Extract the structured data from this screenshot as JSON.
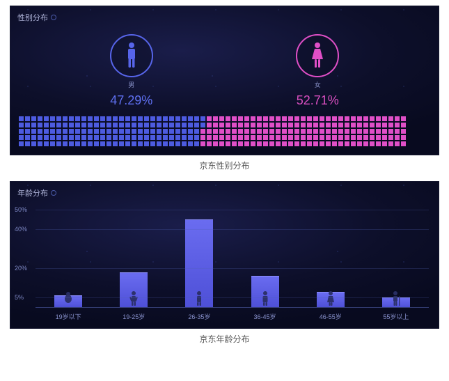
{
  "gender_panel": {
    "title": "性别分布",
    "caption": "京东性别分布",
    "male": {
      "label": "男",
      "pct_text": "47.29%",
      "value": 47.29,
      "color": "#5765ea",
      "pct_color": "#5f70f1"
    },
    "female": {
      "label": "女",
      "pct_text": "52.71%",
      "value": 52.71,
      "color": "#e04fc7",
      "pct_color": "#d94fc0"
    },
    "waffle": {
      "rows": 5,
      "cols": 62,
      "male_color": "#4d5be0",
      "female_color": "#e04fc7"
    }
  },
  "age_panel": {
    "title": "年龄分布",
    "caption": "京东年龄分布",
    "type": "bar",
    "y_ticks": [
      {
        "label": "50%",
        "value": 50
      },
      {
        "label": "40%",
        "value": 40
      },
      {
        "label": "20%",
        "value": 20
      },
      {
        "label": "5%",
        "value": 5
      }
    ],
    "y_max": 55,
    "bar_color_top": "#6a6cf0",
    "bar_color_bottom": "#4e50d7",
    "grid_color": "rgba(80,95,180,.25)",
    "icon_color": "#2a2f66",
    "categories": [
      {
        "label": "19岁以下",
        "value": 6,
        "icon": "baby"
      },
      {
        "label": "19-25岁",
        "value": 18,
        "icon": "youth"
      },
      {
        "label": "26-35岁",
        "value": 45,
        "icon": "adult"
      },
      {
        "label": "36-45岁",
        "value": 16,
        "icon": "midage"
      },
      {
        "label": "46-55岁",
        "value": 8,
        "icon": "senior"
      },
      {
        "label": "55岁以上",
        "value": 5,
        "icon": "elder"
      }
    ]
  },
  "colors": {
    "panel_bg_inner": "#1a1d4a",
    "panel_bg_outer": "#080a1f",
    "text_muted": "#8a93cf"
  }
}
